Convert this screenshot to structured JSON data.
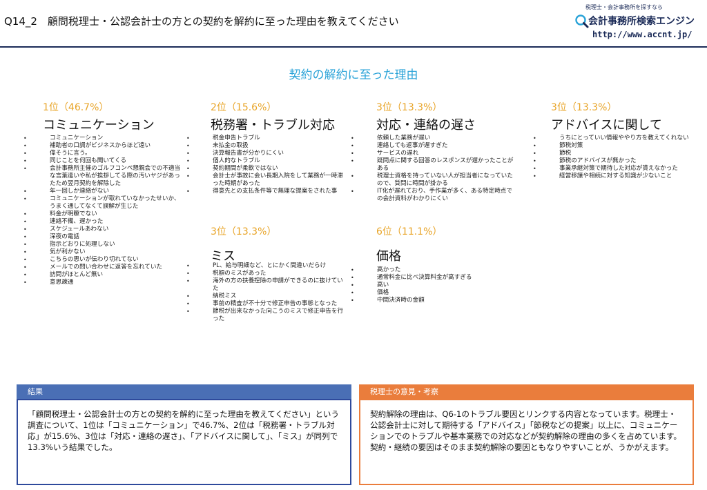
{
  "header": {
    "question": "Q14_2　顧問税理士・公認会計士の方との契約を解約に至った理由を教えてください",
    "logo_tagline": "税理士・会計事務所を探すなら",
    "logo_name": "会計事務所検索エンジン",
    "logo_url": "http://www.accnt.jp/"
  },
  "main_title": "契約の解約に至った理由",
  "rankings": [
    {
      "rank": "1位（46.7%）",
      "category": "コミュニケーション",
      "items": [
        "コミュニケーション",
        "補助者の口調がビジネスからほど遠い",
        "偉そうに言う。",
        "同じことを何回も聞いてくる",
        "会計事務所主催のゴルフコンペ懇親会での不適当な言葉遣いや私が挨拶してる際の汚いヤジがあったため翌月契約を解除した",
        "年一回しか連絡がない",
        "コミュニケーションが取れていなかったせいか、うまく通してなくて誤解が生じた",
        "料金が明瞭でない",
        "連絡不備、遅かった",
        "スケジュールあわない",
        "深夜の電話",
        "指示どおりに処理しない",
        "気が利かない",
        "こちらの思いが伝わり切れてない",
        "メールでの問い合わせに返答を忘れていた",
        "訪問がほとんど無い",
        "意思疎通"
      ]
    },
    {
      "rank": "2位（15.6%）",
      "category": "税務署・トラブル対応",
      "items": [
        "税金申告トラブル",
        "未払金の取扱",
        "決算報告書が分かりにくい",
        "個人的なトラブル",
        "契約期間が柔軟ではない",
        "会計士が事故に会い長期入院をして業務が一時滞った時期があった",
        "得意先との支払条件等で無理な提案をされた事"
      ]
    },
    {
      "rank": "3位（13.3%）",
      "category": "対応・連絡の遅さ",
      "items": [
        "依頼した業務が遅い",
        "連絡しても返事が遅すぎた",
        "サービスの遅れ",
        "疑問点に関する回答のレスポンスが遅かったことがある",
        "税理士資格を持っていない人が担当者になっていたので、質問に時間が掛かる",
        "IT化が遅れており、手作業が多く、ある特定時点での会計資料がわかりにくい"
      ]
    },
    {
      "rank": "3位（13.3%）",
      "category": "アドバイスに関して",
      "items": [
        "うちにとっていい情報ややり方を教えてくれない",
        "節税対策",
        "節税",
        "節税のアドバイスが無かった",
        "事業承継対策で期待した対応が貰えなかった",
        "経営移譲や相続に対する知識が少ないこと"
      ]
    },
    {
      "rank": "3位（13.3%）",
      "category": "ミス",
      "items": [
        "PL、給与明細など、とにかく間違いだらけ",
        "税額のミスがあった",
        "海外の方の扶養控除の申請ができるのに抜けていた",
        "納税ミス",
        "事前の精査が不十分で修正申告の事態となった",
        "節税が出来なかった向こうのミスで修正申告を行った"
      ]
    },
    {
      "rank": "6位（11.1%）",
      "category": "価格",
      "items": [
        "高かった",
        "通常料金に比べ決算料金が高すぎる",
        "高い",
        "価格",
        "中間決済時の金額"
      ]
    }
  ],
  "result_box": {
    "label": "結果",
    "text": "「顧問税理士・公認会計士の方との契約を解約に至った理由を教えてください」という調査について、1位は「コミュニケーション」で46.7%、2位は「税務署・トラブル対応」が15.6%、3位は「対応・連絡の遅さ」、「アドバイスに関して」、「ミス」が同列で13.3%いう結果でした。"
  },
  "opinion_box": {
    "label": "税理士の意見・考察",
    "text": "契約解除の理由は、Q6-1のトラブル要因とリンクする内容となっています。税理士・公認会計士に対して期待する「アドバイス」「節税などの提案」以上に、コミュニケーションでのトラブルや基本業務での対応などが契約解除の理由の多くを占めています。契約・継続の要因はそのまま契約解除の要因ともなりやすいことが、うかがえます。"
  },
  "colors": {
    "rank_color": "#e8a427",
    "title_color": "#2aa3d8",
    "result_border": "#2e4a9c",
    "result_label_bg": "#4a6fb5",
    "opinion_border": "#ea7d3c",
    "opinion_label_bg": "#ea7d3c",
    "header_line": "#1a2a57"
  }
}
